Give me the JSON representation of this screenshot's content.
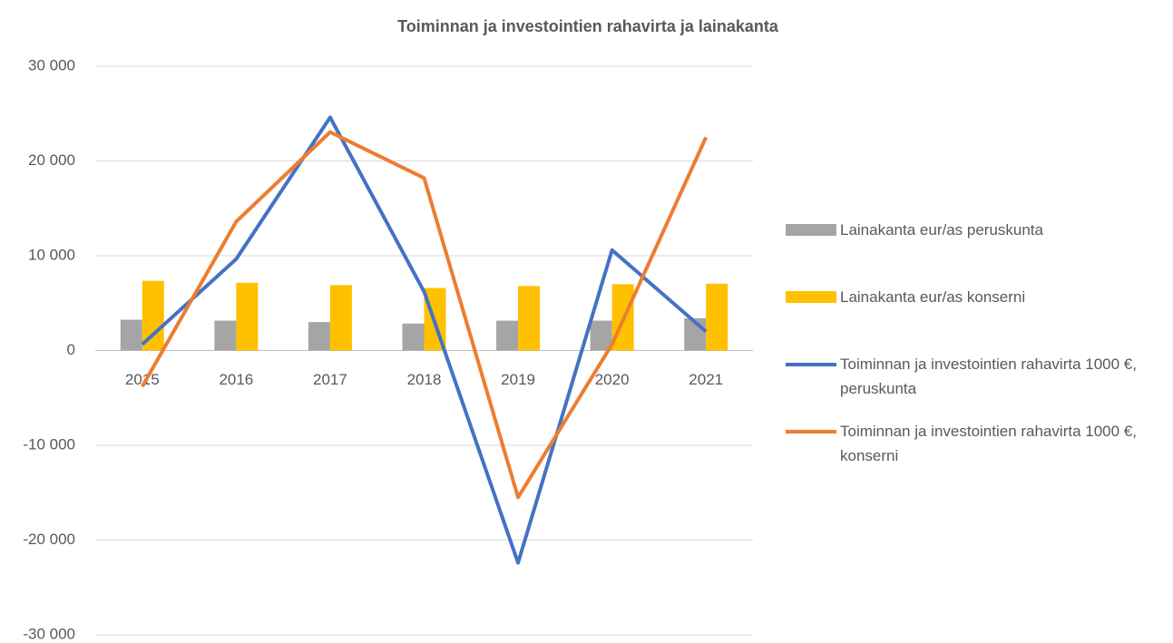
{
  "chart_data": {
    "type": "bar",
    "title": "Toiminnan ja investointien rahavirta ja lainakanta",
    "categories": [
      "2015",
      "2016",
      "2017",
      "2018",
      "2019",
      "2020",
      "2021"
    ],
    "series": [
      {
        "name": "Lainakanta eur/as peruskunta",
        "type": "bar",
        "color": "#a5a5a5",
        "values": [
          3250,
          3150,
          3000,
          2850,
          3150,
          3150,
          3400
        ]
      },
      {
        "name": "Lainakanta eur/as konserni",
        "type": "bar",
        "color": "#ffc000",
        "values": [
          7350,
          7150,
          6900,
          6600,
          6800,
          7000,
          7050
        ]
      },
      {
        "name": "Toiminnan ja investointien rahavirta 1000 €, peruskunta",
        "type": "line",
        "color": "#4472c4",
        "values": [
          650,
          9650,
          24600,
          6200,
          -22400,
          10600,
          2000
        ]
      },
      {
        "name": "Toiminnan ja investointien rahavirta 1000 €, konserni",
        "type": "line",
        "color": "#ed7d31",
        "values": [
          -3800,
          13600,
          23050,
          18200,
          -15500,
          650,
          22500
        ]
      }
    ],
    "ylim": [
      -30000,
      30000
    ],
    "yticks": [
      {
        "value": -30000,
        "label": "-30 000"
      },
      {
        "value": -20000,
        "label": "-20 000"
      },
      {
        "value": -10000,
        "label": "-10 000"
      },
      0,
      {
        "value": 10000,
        "label": "10 000"
      },
      {
        "value": 20000,
        "label": "20 000"
      },
      {
        "value": 30000,
        "label": "30 000"
      }
    ],
    "grid": true,
    "legend": "right"
  }
}
